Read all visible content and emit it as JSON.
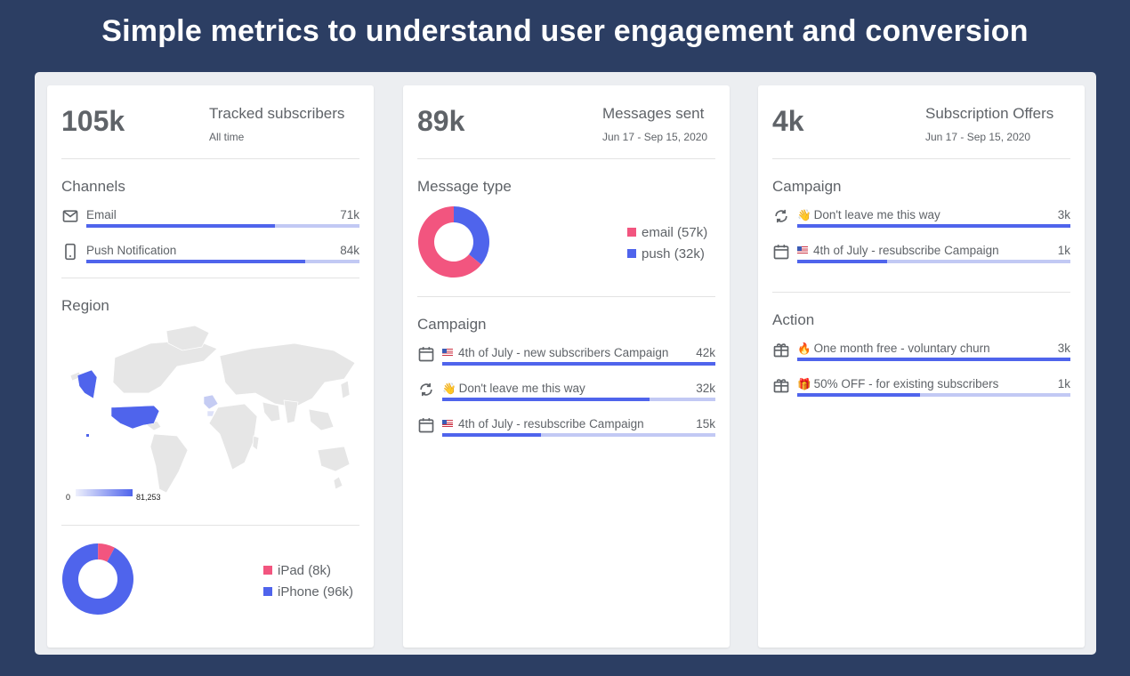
{
  "headline": "Simple metrics to understand user engagement and conversion",
  "colors": {
    "bar_fill": "#4f64ec",
    "bar_track": "#c2c9f4",
    "pink": "#f2557f",
    "blue": "#4f64ec"
  },
  "cards": {
    "subscribers": {
      "big": "105k",
      "title": "Tracked subscribers",
      "sub": "All time",
      "channels_title": "Channels",
      "channels": [
        {
          "icon": "mail-icon",
          "label": "Email",
          "value": "71k",
          "pct": 0.69
        },
        {
          "icon": "phone-icon",
          "label": "Push Notification",
          "value": "84k",
          "pct": 0.8
        }
      ],
      "region_title": "Region",
      "region_scale_min": "0",
      "region_scale_max": "81,253",
      "devices": [
        {
          "label": "iPad (8k)",
          "value": 8,
          "color": "#f2557f"
        },
        {
          "label": "iPhone (96k)",
          "value": 96,
          "color": "#4f64ec"
        }
      ]
    },
    "messages": {
      "big": "89k",
      "title": "Messages sent",
      "sub": "Jun 17 - Sep 15, 2020",
      "type_title": "Message type",
      "types": [
        {
          "label": "email (57k)",
          "value": 57,
          "color": "#f2557f"
        },
        {
          "label": "push (32k)",
          "value": 32,
          "color": "#4f64ec"
        }
      ],
      "campaign_title": "Campaign",
      "campaigns": [
        {
          "icon": "calendar-icon",
          "badge": "flag",
          "label": "4th of July - new subscribers Campaign",
          "value": "42k",
          "pct": 1.0
        },
        {
          "icon": "refresh-icon",
          "badge": "👋",
          "label": "Don't leave me this way",
          "value": "32k",
          "pct": 0.76
        },
        {
          "icon": "calendar-icon",
          "badge": "flag",
          "label": "4th of July - resubscribe Campaign",
          "value": "15k",
          "pct": 0.36
        }
      ]
    },
    "offers": {
      "big": "4k",
      "title": "Subscription Offers",
      "sub": "Jun 17 - Sep 15, 2020",
      "campaign_title": "Campaign",
      "campaigns": [
        {
          "icon": "refresh-icon",
          "badge": "👋",
          "label": "Don't leave me this way",
          "value": "3k",
          "pct": 1.0
        },
        {
          "icon": "calendar-icon",
          "badge": "flag",
          "label": "4th of July - resubscribe Campaign",
          "value": "1k",
          "pct": 0.33
        }
      ],
      "action_title": "Action",
      "actions": [
        {
          "icon": "gift-icon",
          "badge": "🔥",
          "label": "One month free - voluntary churn",
          "value": "3k",
          "pct": 1.0
        },
        {
          "icon": "gift-icon",
          "badge": "🎁",
          "label": "50% OFF - for existing subscribers",
          "value": "1k",
          "pct": 0.45
        }
      ]
    }
  }
}
